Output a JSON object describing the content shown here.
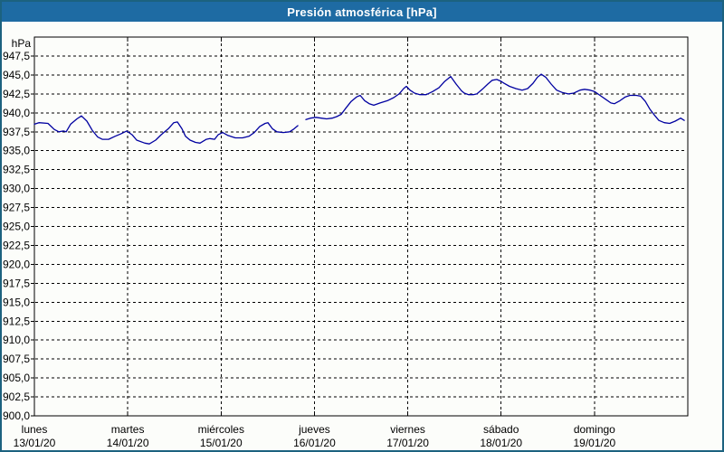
{
  "window": {
    "title": "Presión atmosférica [hPa]"
  },
  "colors": {
    "titlebar_bg": "#1e6ba3",
    "title_text": "#ffffff",
    "frame_border": "#1c627f",
    "window_bg": "#fcfdfa",
    "plot_border": "#000000",
    "grid": "#000000",
    "line": "#0000a0",
    "label_text": "#000000"
  },
  "chart_data": {
    "type": "line",
    "title": "Presión atmosférica [hPa]",
    "ylabel": "hPa",
    "unit": "hPa",
    "ylim": [
      900,
      950
    ],
    "ytick_step": 2.5,
    "grid": "dashed",
    "legend_position": "none",
    "ytick_labels": [
      "947,5",
      "945,0",
      "942,5",
      "940,0",
      "937,5",
      "935,0",
      "932,5",
      "930,0",
      "927,5",
      "925,0",
      "922,5",
      "920,0",
      "917,5",
      "915,0",
      "912,5",
      "910,0",
      "907,5",
      "905,0",
      "902,5",
      "900,0"
    ],
    "x_days": [
      {
        "label": "lunes",
        "date": "13/01/20"
      },
      {
        "label": "martes",
        "date": "14/01/20"
      },
      {
        "label": "miércoles",
        "date": "15/01/20"
      },
      {
        "label": "jueves",
        "date": "16/01/20"
      },
      {
        "label": "viernes",
        "date": "17/01/20"
      },
      {
        "label": "sábado",
        "date": "18/01/20"
      },
      {
        "label": "domingo",
        "date": "19/01/20"
      }
    ],
    "series": [
      {
        "name": "Presión atmosférica",
        "color": "#0000a0",
        "x_unit": "days_from_start",
        "segments": [
          [
            [
              0.0,
              938.5
            ],
            [
              0.048,
              938.7
            ],
            [
              0.145,
              938.6
            ],
            [
              0.213,
              937.8
            ],
            [
              0.262,
              937.5
            ],
            [
              0.31,
              937.6
            ],
            [
              0.34,
              937.5
            ],
            [
              0.388,
              938.5
            ],
            [
              0.456,
              939.2
            ],
            [
              0.504,
              939.6
            ],
            [
              0.562,
              938.9
            ],
            [
              0.62,
              937.7
            ],
            [
              0.679,
              936.8
            ],
            [
              0.727,
              936.5
            ],
            [
              0.795,
              936.5
            ],
            [
              0.863,
              936.9
            ],
            [
              0.921,
              937.2
            ],
            [
              0.989,
              937.6
            ],
            [
              1.047,
              937.1
            ],
            [
              1.096,
              936.4
            ],
            [
              1.183,
              936.0
            ],
            [
              1.231,
              935.9
            ],
            [
              1.299,
              936.4
            ],
            [
              1.357,
              937.1
            ],
            [
              1.435,
              937.9
            ],
            [
              1.493,
              938.7
            ],
            [
              1.532,
              938.8
            ],
            [
              1.58,
              937.9
            ],
            [
              1.619,
              936.9
            ],
            [
              1.668,
              936.4
            ],
            [
              1.726,
              936.1
            ],
            [
              1.774,
              936.0
            ],
            [
              1.842,
              936.5
            ],
            [
              1.881,
              936.6
            ],
            [
              1.93,
              936.5
            ],
            [
              1.968,
              937.1
            ],
            [
              2.017,
              937.4
            ],
            [
              2.075,
              937.0
            ],
            [
              2.153,
              936.7
            ],
            [
              2.23,
              936.7
            ],
            [
              2.298,
              936.9
            ],
            [
              2.356,
              937.4
            ],
            [
              2.414,
              938.2
            ],
            [
              2.472,
              938.6
            ],
            [
              2.501,
              938.7
            ],
            [
              2.55,
              937.9
            ],
            [
              2.598,
              937.5
            ],
            [
              2.666,
              937.4
            ],
            [
              2.734,
              937.5
            ],
            [
              2.773,
              937.8
            ],
            [
              2.822,
              938.3
            ]
          ],
          [
            [
              2.909,
              939.1
            ],
            [
              2.957,
              939.3
            ],
            [
              3.015,
              939.4
            ],
            [
              3.073,
              939.3
            ],
            [
              3.131,
              939.2
            ],
            [
              3.19,
              939.3
            ],
            [
              3.238,
              939.5
            ],
            [
              3.287,
              939.8
            ],
            [
              3.335,
              940.6
            ],
            [
              3.393,
              941.5
            ],
            [
              3.452,
              942.1
            ],
            [
              3.49,
              942.3
            ],
            [
              3.539,
              941.6
            ],
            [
              3.587,
              941.2
            ],
            [
              3.636,
              941.0
            ],
            [
              3.704,
              941.3
            ],
            [
              3.781,
              941.6
            ],
            [
              3.849,
              942.0
            ],
            [
              3.907,
              942.5
            ],
            [
              3.956,
              943.2
            ],
            [
              3.985,
              943.5
            ],
            [
              4.024,
              943.0
            ],
            [
              4.072,
              942.6
            ],
            [
              4.13,
              942.4
            ],
            [
              4.198,
              942.4
            ],
            [
              4.266,
              942.8
            ],
            [
              4.334,
              943.3
            ],
            [
              4.392,
              944.1
            ],
            [
              4.46,
              944.8
            ],
            [
              4.518,
              943.8
            ],
            [
              4.576,
              942.9
            ],
            [
              4.605,
              942.6
            ],
            [
              4.653,
              942.4
            ],
            [
              4.701,
              942.4
            ],
            [
              4.74,
              942.5
            ],
            [
              4.798,
              943.1
            ],
            [
              4.857,
              943.8
            ],
            [
              4.905,
              944.3
            ],
            [
              4.953,
              944.4
            ],
            [
              4.992,
              944.2
            ],
            [
              5.031,
              943.9
            ],
            [
              5.09,
              943.5
            ],
            [
              5.158,
              943.2
            ],
            [
              5.225,
              943.0
            ],
            [
              5.284,
              943.2
            ],
            [
              5.342,
              943.9
            ],
            [
              5.39,
              944.7
            ],
            [
              5.429,
              945.1
            ],
            [
              5.478,
              944.7
            ],
            [
              5.536,
              943.8
            ],
            [
              5.594,
              943.0
            ],
            [
              5.652,
              942.7
            ],
            [
              5.72,
              942.5
            ],
            [
              5.778,
              942.6
            ],
            [
              5.846,
              943.0
            ],
            [
              5.894,
              943.1
            ],
            [
              5.953,
              943.0
            ],
            [
              6.001,
              942.8
            ],
            [
              6.06,
              942.3
            ],
            [
              6.118,
              941.8
            ],
            [
              6.176,
              941.3
            ],
            [
              6.215,
              941.2
            ],
            [
              6.273,
              941.6
            ],
            [
              6.331,
              942.1
            ],
            [
              6.38,
              942.3
            ],
            [
              6.448,
              942.3
            ],
            [
              6.496,
              942.2
            ],
            [
              6.545,
              941.5
            ],
            [
              6.593,
              940.5
            ],
            [
              6.642,
              939.7
            ],
            [
              6.69,
              939.0
            ],
            [
              6.748,
              938.7
            ],
            [
              6.806,
              938.6
            ],
            [
              6.865,
              938.9
            ],
            [
              6.923,
              939.3
            ],
            [
              6.962,
              939.0
            ]
          ]
        ]
      }
    ]
  }
}
